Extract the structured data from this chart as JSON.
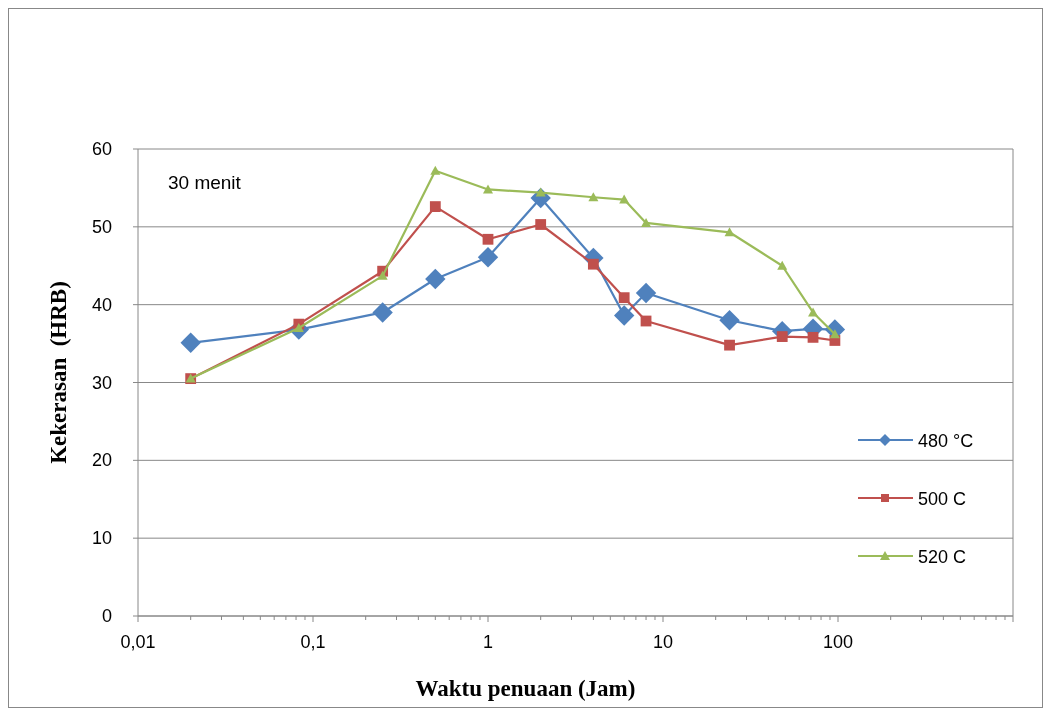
{
  "chart_data": {
    "type": "line",
    "xlabel": "Waktu penuaan (Jam)",
    "ylabel": "Kekerasan  (HRB)",
    "annotations": [
      "30 menit"
    ],
    "log": "x",
    "grid": "y",
    "legend": "right",
    "xlim": [
      0.01,
      1000
    ],
    "ylim": [
      0,
      60
    ],
    "xticks": [
      {
        "value": 0.01,
        "label": "0,01"
      },
      {
        "value": 0.1,
        "label": "0,1"
      },
      1,
      10,
      100,
      {
        "value": 1000,
        "label": null
      }
    ],
    "yticks": [
      0,
      10,
      20,
      30,
      40,
      50,
      60
    ],
    "x": [
      0.02,
      0.083,
      0.25,
      0.5,
      1,
      2,
      4,
      6,
      8,
      24,
      48,
      72,
      96
    ],
    "series": [
      {
        "name": "480 °C",
        "color": "#4f81bd",
        "marker": "diamond",
        "values": [
          35.1,
          36.8,
          39,
          43.3,
          46.1,
          53.7,
          46,
          38.6,
          41.5,
          38,
          36.6,
          36.9,
          36.8
        ]
      },
      {
        "name": "500 C",
        "color": "#c0504d",
        "marker": "square",
        "values": [
          30.5,
          37.5,
          44.3,
          52.6,
          48.4,
          50.3,
          45.2,
          40.9,
          37.9,
          34.8,
          35.9,
          35.8,
          35.4
        ]
      },
      {
        "name": "520 C",
        "color": "#9bbb59",
        "marker": "triangle",
        "values": [
          30.5,
          37,
          43.7,
          57.2,
          54.8,
          54.4,
          53.8,
          53.5,
          50.5,
          49.3,
          45,
          39,
          36.2
        ]
      }
    ]
  }
}
